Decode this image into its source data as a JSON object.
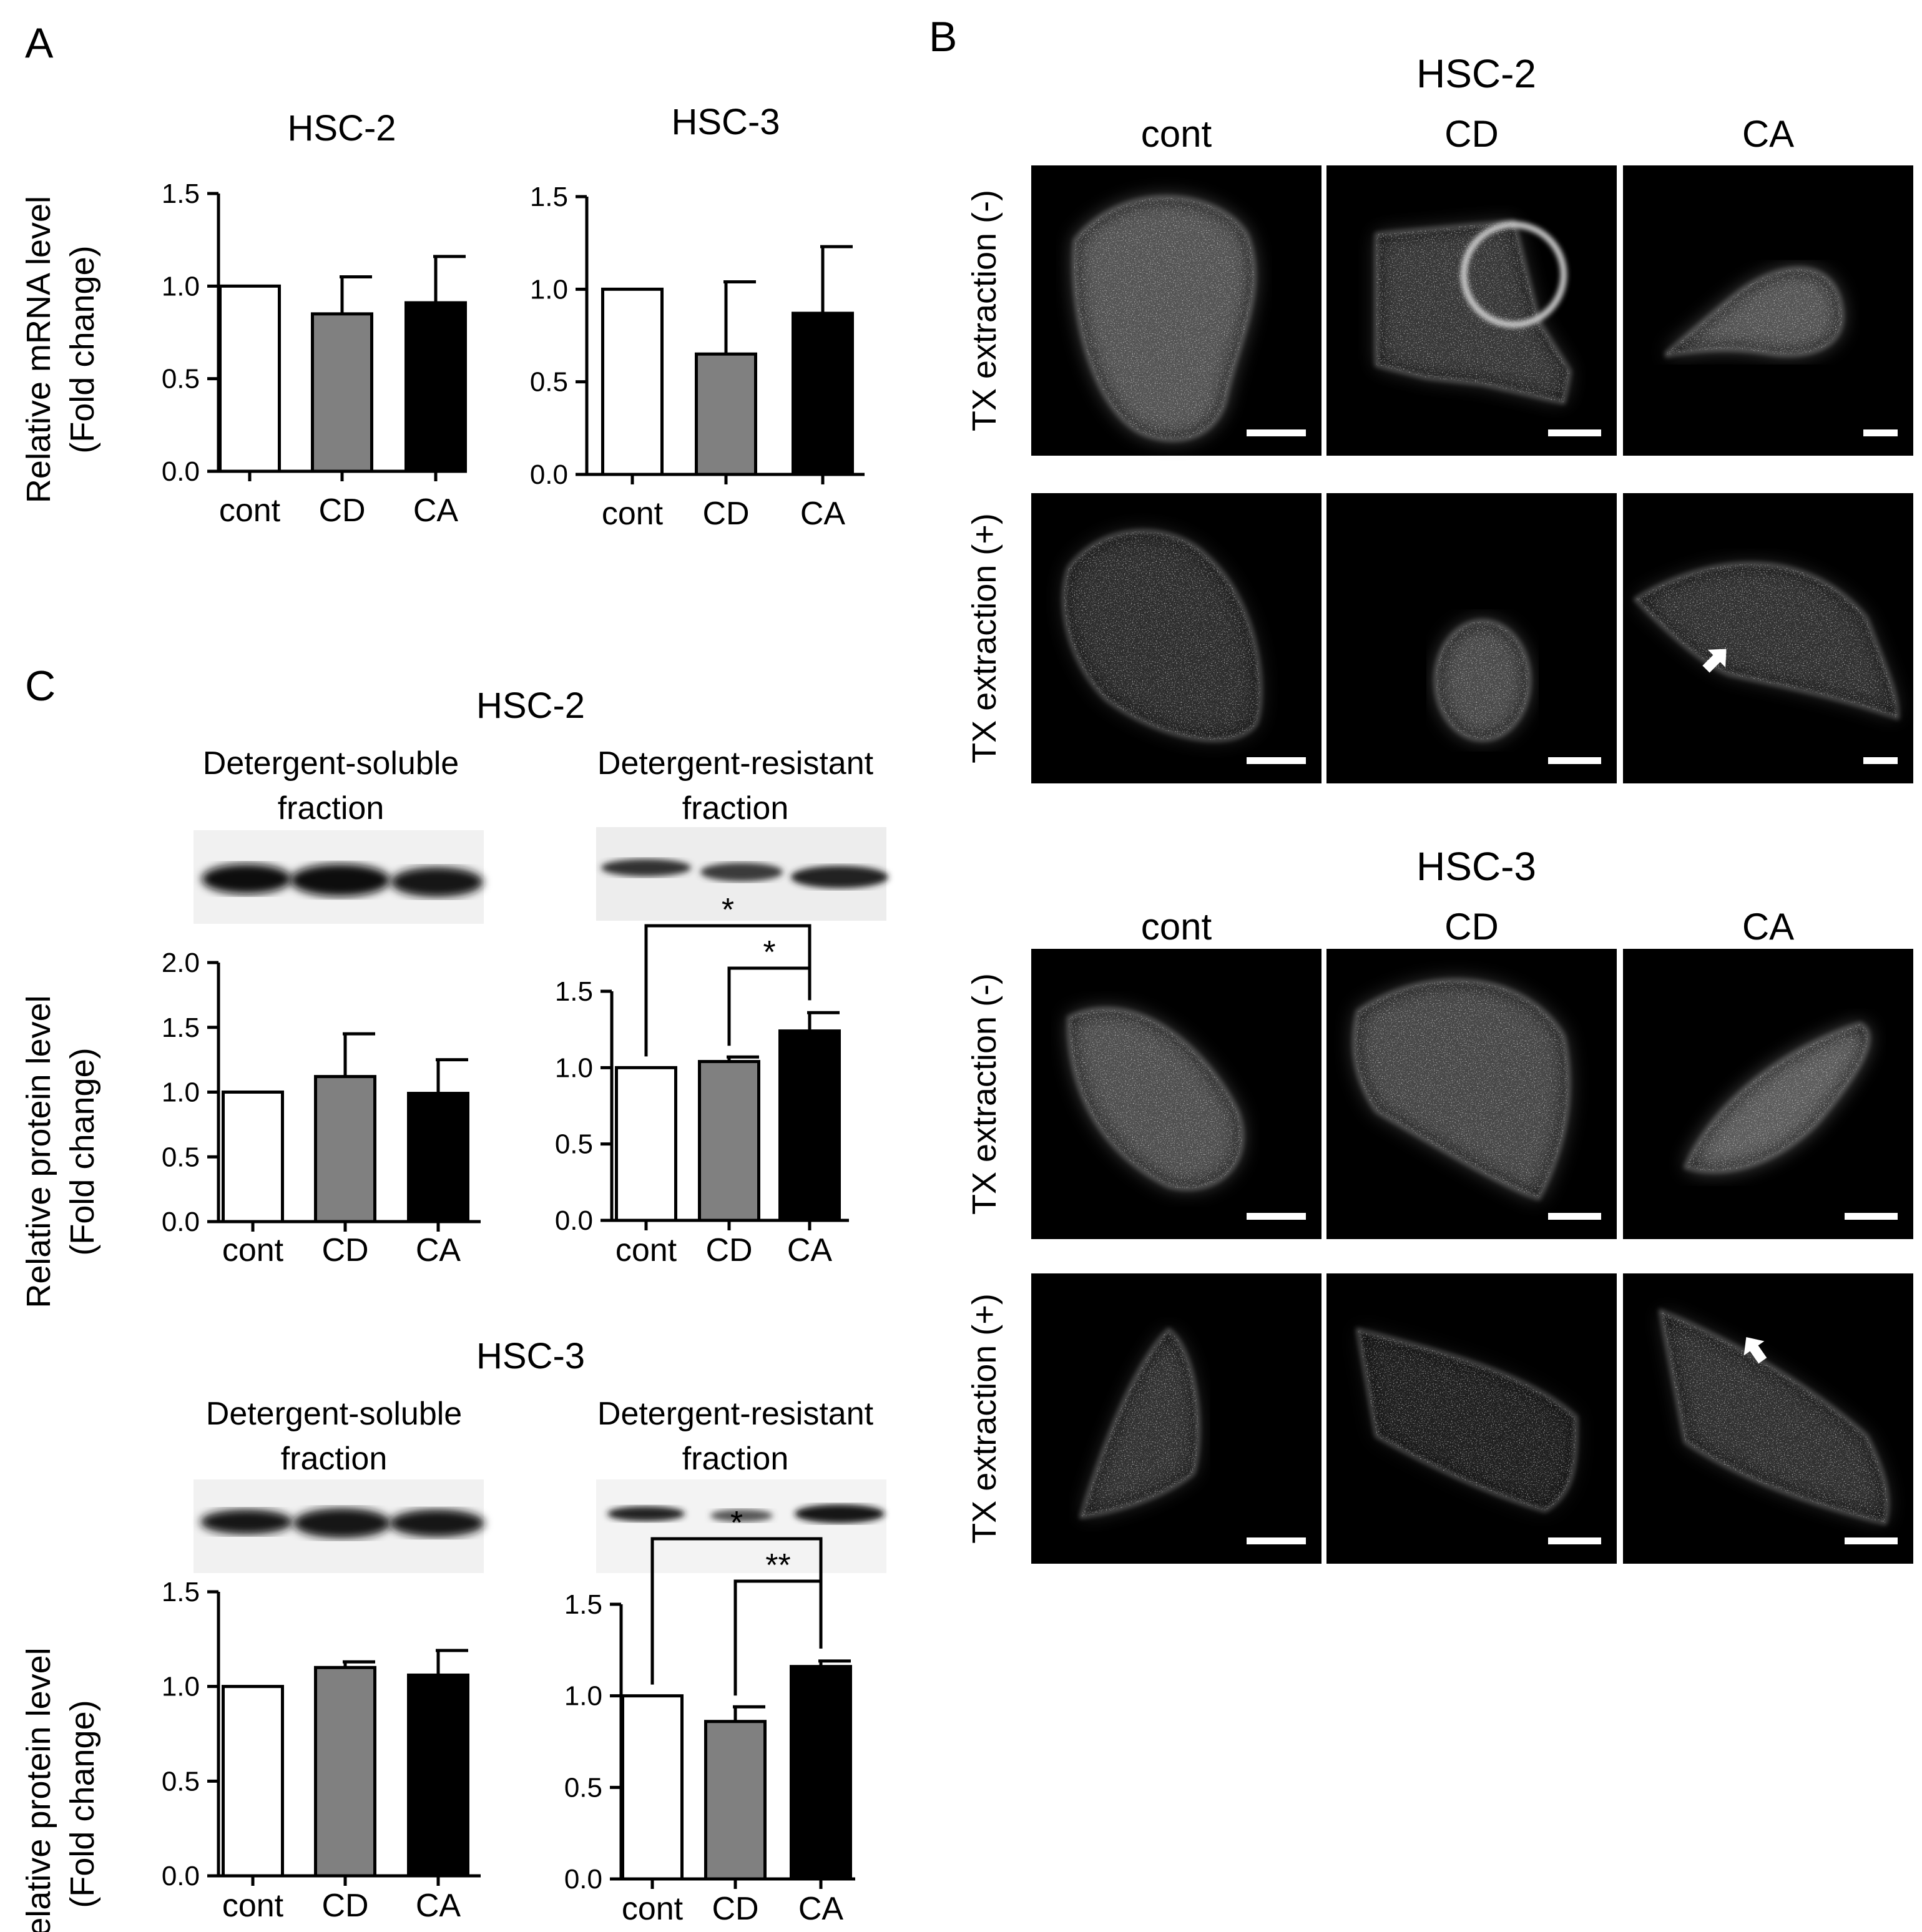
{
  "panel_letters": {
    "a": "A",
    "b": "B",
    "c": "C"
  },
  "panel_a": {
    "ylabel_line1": "Relative mRNA level",
    "ylabel_line2": "(Fold change)"
  },
  "panel_b": {
    "groups": [
      {
        "title": "HSC-2",
        "columns": [
          "cont",
          "CD",
          "CA"
        ],
        "rows": [
          "TX extraction (-)",
          "TX extraction (+)"
        ]
      },
      {
        "title": "HSC-3",
        "columns": [
          "cont",
          "CD",
          "CA"
        ],
        "rows": [
          "TX extraction (-)",
          "TX extraction (+)"
        ]
      }
    ],
    "arrow_icon": "white-arrow-icon",
    "scale_bar": "scale-bar"
  },
  "panel_c": {
    "ylabel_line1": "Relative protein level",
    "ylabel_line2": "(Fold change)",
    "blocks": [
      {
        "title": "HSC-2",
        "fraction_left": [
          "Detergent-soluble",
          "fraction"
        ],
        "fraction_right": [
          "Detergent-resistant",
          "fraction"
        ]
      },
      {
        "title": "HSC-3",
        "fraction_left": [
          "Detergent-soluble",
          "fraction"
        ],
        "fraction_right": [
          "Detergent-resistant",
          "fraction"
        ]
      }
    ]
  },
  "colors": {
    "cont": "#ffffff",
    "CD": "#808080",
    "CA": "#000000"
  },
  "chart_data": [
    {
      "id": "A-HSC2",
      "type": "bar",
      "title": "HSC-2",
      "categories": [
        "cont",
        "CD",
        "CA"
      ],
      "values": [
        1.0,
        0.85,
        0.91
      ],
      "errors": [
        0,
        0.2,
        0.25
      ],
      "ylim": [
        0,
        1.5
      ],
      "yticks": [
        "0.0",
        "0.5",
        "1.0",
        "1.5"
      ],
      "sig": []
    },
    {
      "id": "A-HSC3",
      "type": "bar",
      "title": "HSC-3",
      "categories": [
        "cont",
        "CD",
        "CA"
      ],
      "values": [
        1.0,
        0.65,
        0.87
      ],
      "errors": [
        0,
        0.39,
        0.36
      ],
      "ylim": [
        0,
        1.5
      ],
      "yticks": [
        "0.0",
        "0.5",
        "1.0",
        "1.5"
      ],
      "sig": []
    },
    {
      "id": "C-HSC2-soluble",
      "type": "bar",
      "title": "",
      "categories": [
        "cont",
        "CD",
        "CA"
      ],
      "values": [
        1.0,
        1.12,
        0.99
      ],
      "errors": [
        0,
        0.33,
        0.26
      ],
      "ylim": [
        0,
        2.0
      ],
      "yticks": [
        "0.0",
        "0.5",
        "1.0",
        "1.5",
        "2.0"
      ],
      "sig": []
    },
    {
      "id": "C-HSC2-resistant",
      "type": "bar",
      "title": "",
      "categories": [
        "cont",
        "CD",
        "CA"
      ],
      "values": [
        1.0,
        1.04,
        1.24
      ],
      "errors": [
        0,
        0.03,
        0.12
      ],
      "ylim": [
        0,
        1.5
      ],
      "yticks": [
        "0.0",
        "0.5",
        "1.0",
        "1.5"
      ],
      "sig": [
        {
          "from": 0,
          "to": 2,
          "label": "*"
        },
        {
          "from": 1,
          "to": 2,
          "label": "*"
        }
      ]
    },
    {
      "id": "C-HSC3-soluble",
      "type": "bar",
      "title": "",
      "categories": [
        "cont",
        "CD",
        "CA"
      ],
      "values": [
        1.0,
        1.1,
        1.06
      ],
      "errors": [
        0,
        0.03,
        0.13
      ],
      "ylim": [
        0,
        1.5
      ],
      "yticks": [
        "0.0",
        "0.5",
        "1.0",
        "1.5"
      ],
      "sig": []
    },
    {
      "id": "C-HSC3-resistant",
      "type": "bar",
      "title": "",
      "categories": [
        "cont",
        "CD",
        "CA"
      ],
      "values": [
        1.0,
        0.86,
        1.16
      ],
      "errors": [
        0,
        0.08,
        0.03
      ],
      "ylim": [
        0,
        1.5
      ],
      "yticks": [
        "0.0",
        "0.5",
        "1.0",
        "1.5"
      ],
      "sig": [
        {
          "from": 0,
          "to": 2,
          "label": "*"
        },
        {
          "from": 1,
          "to": 2,
          "label": "**"
        }
      ]
    }
  ]
}
